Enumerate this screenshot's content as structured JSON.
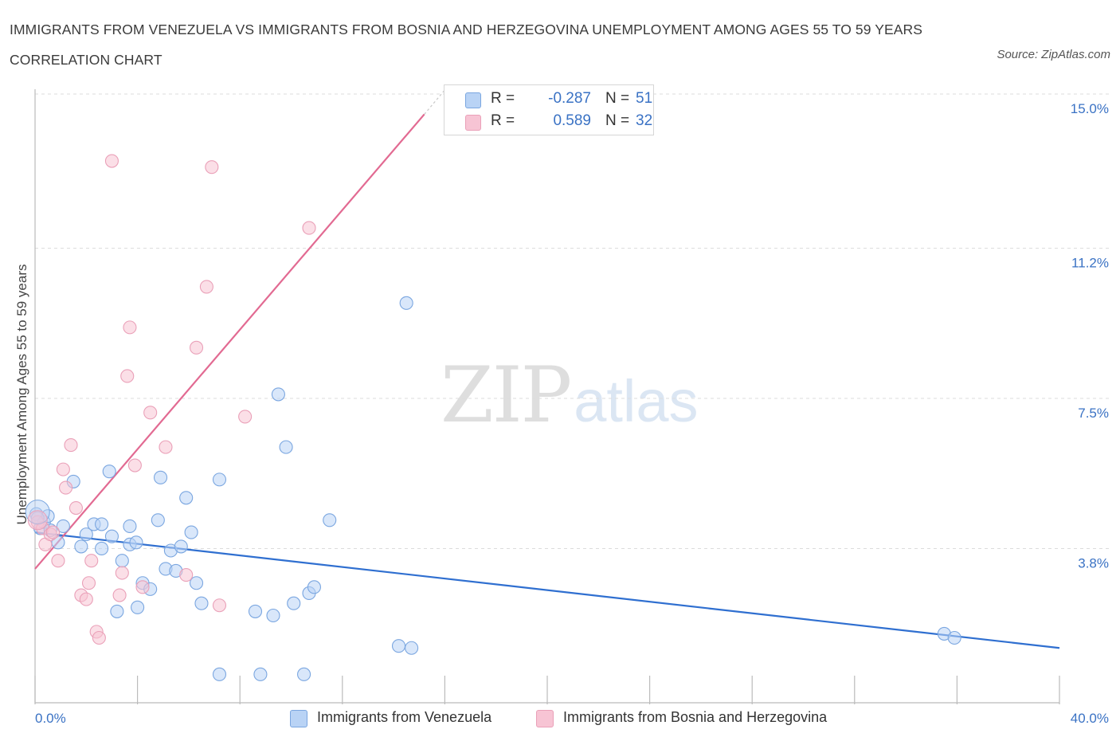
{
  "header": {
    "title": "IMMIGRANTS FROM VENEZUELA VS IMMIGRANTS FROM BOSNIA AND HERZEGOVINA UNEMPLOYMENT AMONG AGES 55 TO 59 YEARS CORRELATION CHART",
    "source": "Source: ZipAtlas.com"
  },
  "watermark": {
    "zip": "ZIP",
    "atlas": "atlas"
  },
  "legend": {
    "r_label": "R =",
    "n_label": "N =",
    "series": [
      {
        "name": "Immigrants from Venezuela",
        "r": "-0.287",
        "n": "51"
      },
      {
        "name": "Immigrants from Bosnia and Herzegovina",
        "r": "0.589",
        "n": "32"
      }
    ]
  },
  "colors": {
    "venezuela_fill": "#b9d3f5",
    "venezuela_stroke": "#7aa6e0",
    "venezuela_line": "#2f6fd0",
    "bosnia_fill": "#f7c4d4",
    "bosnia_stroke": "#eaa0b8",
    "bosnia_line": "#e26a92",
    "grid": "#dcdcdc",
    "tick_text": "#3a72c4"
  },
  "chart_data": {
    "type": "scatter",
    "title": "IMMIGRANTS FROM VENEZUELA VS IMMIGRANTS FROM BOSNIA AND HERZEGOVINA UNEMPLOYMENT AMONG AGES 55 TO 59 YEARS CORRELATION CHART",
    "xlabel": "",
    "ylabel": "Unemployment Among Ages 55 to 59 years",
    "xlim": [
      0,
      40
    ],
    "ylim": [
      0,
      15
    ],
    "x_tick_labels": [
      "0.0%",
      "40.0%"
    ],
    "y_ticks": [
      3.8,
      7.5,
      11.2,
      15.0
    ],
    "y_tick_labels": [
      "3.8%",
      "7.5%",
      "11.2%",
      "15.0%"
    ],
    "grid": true,
    "legend_position": "top-center",
    "series": [
      {
        "name": "Immigrants from Venezuela",
        "points": [
          [
            0.05,
            4.65
          ],
          [
            0.2,
            4.3
          ],
          [
            0.35,
            4.45
          ],
          [
            0.5,
            4.6
          ],
          [
            0.6,
            4.25
          ],
          [
            0.9,
            3.95
          ],
          [
            1.1,
            4.35
          ],
          [
            1.5,
            5.45
          ],
          [
            1.8,
            3.85
          ],
          [
            2.0,
            4.15
          ],
          [
            2.3,
            4.4
          ],
          [
            2.6,
            4.4
          ],
          [
            2.6,
            3.8
          ],
          [
            2.9,
            5.7
          ],
          [
            3.0,
            4.1
          ],
          [
            3.2,
            2.25
          ],
          [
            3.4,
            3.5
          ],
          [
            3.7,
            4.35
          ],
          [
            3.7,
            3.9
          ],
          [
            3.95,
            3.95
          ],
          [
            4.0,
            2.35
          ],
          [
            4.2,
            2.95
          ],
          [
            4.5,
            2.8
          ],
          [
            4.8,
            4.5
          ],
          [
            4.9,
            5.55
          ],
          [
            5.1,
            3.3
          ],
          [
            5.3,
            3.75
          ],
          [
            5.5,
            3.25
          ],
          [
            5.7,
            3.85
          ],
          [
            5.9,
            5.05
          ],
          [
            6.1,
            4.2
          ],
          [
            6.3,
            2.95
          ],
          [
            6.5,
            2.45
          ],
          [
            7.2,
            0.7
          ],
          [
            7.2,
            5.5
          ],
          [
            8.6,
            2.25
          ],
          [
            8.8,
            0.7
          ],
          [
            9.3,
            2.15
          ],
          [
            9.5,
            7.6
          ],
          [
            9.8,
            6.3
          ],
          [
            10.1,
            2.45
          ],
          [
            10.5,
            0.7
          ],
          [
            10.7,
            2.7
          ],
          [
            10.9,
            2.85
          ],
          [
            11.5,
            4.5
          ],
          [
            14.5,
            9.85
          ],
          [
            14.2,
            1.4
          ],
          [
            14.7,
            1.35
          ],
          [
            35.5,
            1.7
          ],
          [
            35.9,
            1.6
          ],
          [
            0.1,
            4.55
          ]
        ],
        "trend": {
          "x0": 0,
          "y0": 4.2,
          "x1": 40,
          "y1": 1.35
        }
      },
      {
        "name": "Immigrants from Bosnia and Herzegovina",
        "points": [
          [
            0.1,
            4.45
          ],
          [
            0.3,
            4.3
          ],
          [
            0.4,
            3.9
          ],
          [
            0.6,
            4.15
          ],
          [
            0.9,
            3.5
          ],
          [
            1.4,
            6.35
          ],
          [
            1.2,
            5.3
          ],
          [
            1.1,
            5.75
          ],
          [
            1.6,
            4.8
          ],
          [
            1.8,
            2.65
          ],
          [
            2.0,
            2.55
          ],
          [
            2.1,
            2.95
          ],
          [
            2.2,
            3.5
          ],
          [
            2.4,
            1.75
          ],
          [
            2.5,
            1.6
          ],
          [
            3.0,
            13.35
          ],
          [
            3.3,
            2.65
          ],
          [
            3.4,
            3.2
          ],
          [
            3.6,
            8.05
          ],
          [
            3.7,
            9.25
          ],
          [
            3.9,
            5.85
          ],
          [
            4.2,
            2.85
          ],
          [
            4.5,
            7.15
          ],
          [
            5.1,
            6.3
          ],
          [
            5.9,
            3.15
          ],
          [
            6.3,
            8.75
          ],
          [
            6.7,
            10.25
          ],
          [
            6.9,
            13.2
          ],
          [
            7.2,
            2.4
          ],
          [
            8.2,
            7.05
          ],
          [
            10.7,
            11.7
          ],
          [
            0.7,
            4.2
          ]
        ],
        "trend": {
          "x0": 0,
          "y0": 3.3,
          "x1": 15.2,
          "y1": 14.5,
          "dash_x1": 16.0,
          "dash_y1": 15.1
        }
      }
    ]
  }
}
